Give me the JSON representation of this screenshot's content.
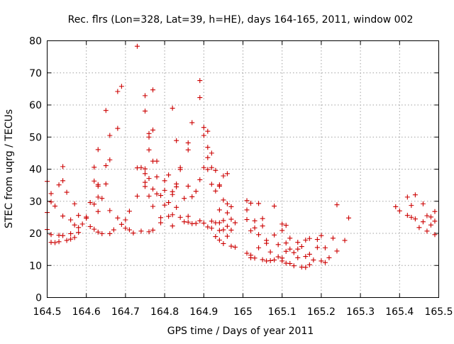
{
  "chart_data": {
    "type": "scatter",
    "title": "Rec. flrs (Lon=328, Lat=39, h=HE), days 164-165, 2011, window 002",
    "xlabel": "GPS time / Days of year 2011",
    "ylabel": "STEC from uqrg / TECUs",
    "xlim": [
      164.5,
      165.5
    ],
    "ylim": [
      0,
      80
    ],
    "xticks": [
      164.5,
      164.6,
      164.7,
      164.8,
      164.9,
      165,
      165.1,
      165.2,
      165.3,
      165.4,
      165.5
    ],
    "xtick_labels": [
      "164.5",
      "164.6",
      "164.7",
      "164.8",
      "164.9",
      "165",
      "165.1",
      "165.2",
      "165.3",
      "165.4",
      "165.5"
    ],
    "yticks": [
      0,
      10,
      20,
      30,
      40,
      50,
      60,
      70,
      80
    ],
    "ytick_labels": [
      "0",
      "10",
      "20",
      "30",
      "40",
      "50",
      "60",
      "70",
      "80"
    ],
    "grid": true,
    "marker": "+",
    "color": "#cc0000",
    "series": [
      {
        "points": [
          [
            164.5,
            36.2
          ],
          [
            164.5,
            26.5
          ],
          [
            164.5,
            21.2
          ],
          [
            164.51,
            17.2
          ],
          [
            164.51,
            32.4
          ],
          [
            164.51,
            29.8
          ],
          [
            164.51,
            19.6
          ],
          [
            164.52,
            17.1
          ],
          [
            164.52,
            28.5
          ],
          [
            164.53,
            35.1
          ],
          [
            164.53,
            19.4
          ],
          [
            164.53,
            17.4
          ],
          [
            164.54,
            40.8
          ],
          [
            164.54,
            36.4
          ],
          [
            164.54,
            25.4
          ],
          [
            164.54,
            19.3
          ],
          [
            164.55,
            17.8
          ],
          [
            164.55,
            32.8
          ],
          [
            164.56,
            24.2
          ],
          [
            164.56,
            19.9
          ],
          [
            164.56,
            18.2
          ],
          [
            164.57,
            29.2
          ],
          [
            164.57,
            22.6
          ],
          [
            164.57,
            18.7
          ],
          [
            164.58,
            25.6
          ],
          [
            164.58,
            21.8
          ],
          [
            164.58,
            20.3
          ],
          [
            164.59,
            22.9
          ],
          [
            164.6,
            25.1
          ],
          [
            164.6,
            24.7
          ],
          [
            164.61,
            29.6
          ],
          [
            164.61,
            22.1
          ],
          [
            164.62,
            29.1
          ],
          [
            164.62,
            21.3
          ],
          [
            164.62,
            40.6
          ],
          [
            164.62,
            36.3
          ],
          [
            164.63,
            46.1
          ],
          [
            164.63,
            35.2
          ],
          [
            164.63,
            34.7
          ],
          [
            164.63,
            31.3
          ],
          [
            164.63,
            26.8
          ],
          [
            164.63,
            20.4
          ],
          [
            164.64,
            30.9
          ],
          [
            164.64,
            19.9
          ],
          [
            164.65,
            58.3
          ],
          [
            164.65,
            41.1
          ],
          [
            164.65,
            35.4
          ],
          [
            164.66,
            50.5
          ],
          [
            164.66,
            42.9
          ],
          [
            164.66,
            27.1
          ],
          [
            164.66,
            19.9
          ],
          [
            164.67,
            21.1
          ],
          [
            164.68,
            64.2
          ],
          [
            164.68,
            52.7
          ],
          [
            164.68,
            24.8
          ],
          [
            164.69,
            65.8
          ],
          [
            164.69,
            22.8
          ],
          [
            164.7,
            24.2
          ],
          [
            164.7,
            21.6
          ],
          [
            164.71,
            26.9
          ],
          [
            164.71,
            21.1
          ],
          [
            164.72,
            20.1
          ],
          [
            164.73,
            78.3
          ],
          [
            164.73,
            40.4
          ],
          [
            164.73,
            31.6
          ],
          [
            164.74,
            40.5
          ],
          [
            164.74,
            20.7
          ],
          [
            164.75,
            62.9
          ],
          [
            164.75,
            58.1
          ],
          [
            164.75,
            40.1
          ],
          [
            164.75,
            35.9
          ],
          [
            164.75,
            38.6
          ],
          [
            164.75,
            34.6
          ],
          [
            164.76,
            20.5
          ],
          [
            164.76,
            51.1
          ],
          [
            164.76,
            50.0
          ],
          [
            164.76,
            46.0
          ],
          [
            164.76,
            37.1
          ],
          [
            164.76,
            31.6
          ],
          [
            164.77,
            33.8
          ],
          [
            164.77,
            21.0
          ],
          [
            164.77,
            64.7
          ],
          [
            164.77,
            52.2
          ],
          [
            164.77,
            42.5
          ],
          [
            164.77,
            28.4
          ],
          [
            164.78,
            37.6
          ],
          [
            164.78,
            42.5
          ],
          [
            164.78,
            32.3
          ],
          [
            164.79,
            24.9
          ],
          [
            164.79,
            23.3
          ],
          [
            164.79,
            31.8
          ],
          [
            164.8,
            36.4
          ],
          [
            164.8,
            28.8
          ],
          [
            164.8,
            33.4
          ],
          [
            164.81,
            25.3
          ],
          [
            164.81,
            38.2
          ],
          [
            164.81,
            29.6
          ],
          [
            164.82,
            32.1
          ],
          [
            164.82,
            59.0
          ],
          [
            164.82,
            33.0
          ],
          [
            164.82,
            25.8
          ],
          [
            164.82,
            22.3
          ],
          [
            164.83,
            48.9
          ],
          [
            164.83,
            35.4
          ],
          [
            164.83,
            34.5
          ],
          [
            164.83,
            28.1
          ],
          [
            164.84,
            25.0
          ],
          [
            164.84,
            39.9
          ],
          [
            164.84,
            40.5
          ],
          [
            164.85,
            23.6
          ],
          [
            164.85,
            30.9
          ],
          [
            164.86,
            48.2
          ],
          [
            164.86,
            46.0
          ],
          [
            164.86,
            34.7
          ],
          [
            164.86,
            25.3
          ],
          [
            164.86,
            23.5
          ],
          [
            164.87,
            23.0
          ],
          [
            164.87,
            31.4
          ],
          [
            164.87,
            54.5
          ],
          [
            164.88,
            33.1
          ],
          [
            164.88,
            23.1
          ],
          [
            164.89,
            67.6
          ],
          [
            164.89,
            62.3
          ],
          [
            164.89,
            36.7
          ],
          [
            164.89,
            23.9
          ],
          [
            164.9,
            53.0
          ],
          [
            164.9,
            50.5
          ],
          [
            164.9,
            40.5
          ],
          [
            164.9,
            23.2
          ],
          [
            164.91,
            51.8
          ],
          [
            164.91,
            46.8
          ],
          [
            164.91,
            43.6
          ],
          [
            164.91,
            39.9
          ],
          [
            164.91,
            22.0
          ],
          [
            164.92,
            45.0
          ],
          [
            164.92,
            35.3
          ],
          [
            164.92,
            40.5
          ],
          [
            164.92,
            23.8
          ],
          [
            164.92,
            21.6
          ],
          [
            164.93,
            33.2
          ],
          [
            164.93,
            19.0
          ],
          [
            164.93,
            39.6
          ],
          [
            164.93,
            23.3
          ],
          [
            164.94,
            35.1
          ],
          [
            164.94,
            34.7
          ],
          [
            164.94,
            27.3
          ],
          [
            164.94,
            23.3
          ],
          [
            164.94,
            20.9
          ],
          [
            164.94,
            17.9
          ],
          [
            164.95,
            37.9
          ],
          [
            164.95,
            30.4
          ],
          [
            164.95,
            24.0
          ],
          [
            164.95,
            16.8
          ],
          [
            164.95,
            21.1
          ],
          [
            164.96,
            38.6
          ],
          [
            164.96,
            29.2
          ],
          [
            164.96,
            26.4
          ],
          [
            164.96,
            22.2
          ],
          [
            164.96,
            19.1
          ],
          [
            164.97,
            28.3
          ],
          [
            164.97,
            24.4
          ],
          [
            164.97,
            16.0
          ],
          [
            164.97,
            21.0
          ],
          [
            164.98,
            23.3
          ],
          [
            164.98,
            15.7
          ],
          [
            165.01,
            30.2
          ],
          [
            165.01,
            27.3
          ],
          [
            165.01,
            24.3
          ],
          [
            165.01,
            13.8
          ],
          [
            165.02,
            29.4
          ],
          [
            165.02,
            13.2
          ],
          [
            165.02,
            12.4
          ],
          [
            165.02,
            20.8
          ],
          [
            165.03,
            21.7
          ],
          [
            165.03,
            23.9
          ],
          [
            165.03,
            12.3
          ],
          [
            165.04,
            29.3
          ],
          [
            165.04,
            19.6
          ],
          [
            165.04,
            15.5
          ],
          [
            165.05,
            11.8
          ],
          [
            165.05,
            22.3
          ],
          [
            165.05,
            24.6
          ],
          [
            165.06,
            17.8
          ],
          [
            165.06,
            16.9
          ],
          [
            165.06,
            11.4
          ],
          [
            165.07,
            14.2
          ],
          [
            165.07,
            11.5
          ],
          [
            165.08,
            28.5
          ],
          [
            165.08,
            19.5
          ],
          [
            165.08,
            11.7
          ],
          [
            165.09,
            12.7
          ],
          [
            165.09,
            16.5
          ],
          [
            165.1,
            22.9
          ],
          [
            165.1,
            20.9
          ],
          [
            165.1,
            12.3
          ],
          [
            165.1,
            11.4
          ],
          [
            165.11,
            22.5
          ],
          [
            165.11,
            17.0
          ],
          [
            165.11,
            14.4
          ],
          [
            165.11,
            10.7
          ],
          [
            165.12,
            18.5
          ],
          [
            165.12,
            15.1
          ],
          [
            165.12,
            10.6
          ],
          [
            165.13,
            14.0
          ],
          [
            165.13,
            9.9
          ],
          [
            165.14,
            17.2
          ],
          [
            165.14,
            15.1
          ],
          [
            165.14,
            12.4
          ],
          [
            165.15,
            15.9
          ],
          [
            165.15,
            9.5
          ],
          [
            165.16,
            17.9
          ],
          [
            165.16,
            12.8
          ],
          [
            165.16,
            9.4
          ],
          [
            165.17,
            18.4
          ],
          [
            165.17,
            13.5
          ],
          [
            165.17,
            10.2
          ],
          [
            165.18,
            11.7
          ],
          [
            165.19,
            18.1
          ],
          [
            165.19,
            15.6
          ],
          [
            165.2,
            19.3
          ],
          [
            165.2,
            11.4
          ],
          [
            165.21,
            15.5
          ],
          [
            165.21,
            10.9
          ],
          [
            165.22,
            12.4
          ],
          [
            165.23,
            18.5
          ],
          [
            165.24,
            14.5
          ],
          [
            165.24,
            28.9
          ],
          [
            165.26,
            17.8
          ],
          [
            165.27,
            24.8
          ],
          [
            165.39,
            28.3
          ],
          [
            165.4,
            27.0
          ],
          [
            165.42,
            31.3
          ],
          [
            165.42,
            25.6
          ],
          [
            165.43,
            28.7
          ],
          [
            165.43,
            25.0
          ],
          [
            165.44,
            24.5
          ],
          [
            165.44,
            32.0
          ],
          [
            165.45,
            21.8
          ],
          [
            165.46,
            29.2
          ],
          [
            165.46,
            23.6
          ],
          [
            165.47,
            25.5
          ],
          [
            165.47,
            20.7
          ],
          [
            165.48,
            25.1
          ],
          [
            165.48,
            22.6
          ],
          [
            165.49,
            26.8
          ],
          [
            165.49,
            23.8
          ],
          [
            165.49,
            19.6
          ]
        ]
      }
    ]
  }
}
